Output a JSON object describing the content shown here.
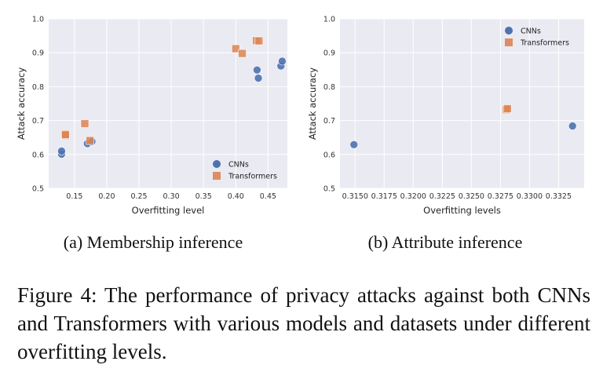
{
  "colors": {
    "cnn": "#4c72b0",
    "transformer": "#dd8452",
    "background": "#eaeaf2"
  },
  "chart_data": [
    {
      "type": "scatter",
      "subcaption": "(a) Membership inference",
      "xlabel": "Overfitting level",
      "ylabel": "Attack accuracy",
      "xlim": [
        0.11,
        0.48
      ],
      "ylim": [
        0.5,
        1.0
      ],
      "xticks": [
        "0.15",
        "0.20",
        "0.25",
        "0.30",
        "0.35",
        "0.40",
        "0.45"
      ],
      "yticks": [
        "0.5",
        "0.6",
        "0.7",
        "0.8",
        "0.9",
        "1.0"
      ],
      "grid": true,
      "legend_position": "lower-right",
      "series": [
        {
          "name": "CNNs",
          "marker": "circle",
          "color": "#4c72b0",
          "x": [
            0.13,
            0.13,
            0.17,
            0.177,
            0.433,
            0.435,
            0.47,
            0.472
          ],
          "y": [
            0.601,
            0.61,
            0.632,
            0.638,
            0.849,
            0.825,
            0.861,
            0.875
          ]
        },
        {
          "name": "Transformers",
          "marker": "square",
          "color": "#dd8452",
          "x": [
            0.136,
            0.136,
            0.166,
            0.174,
            0.4,
            0.41,
            0.432,
            0.436
          ],
          "y": [
            0.656,
            0.659,
            0.691,
            0.641,
            0.912,
            0.898,
            0.936,
            0.935
          ]
        }
      ]
    },
    {
      "type": "scatter",
      "subcaption": "(b) Attribute inference",
      "xlabel": "Overfitting levels",
      "ylabel": "Attack accuracy",
      "xlim": [
        0.3137,
        0.3347
      ],
      "ylim": [
        0.5,
        1.0
      ],
      "xticks": [
        "0.3150",
        "0.3175",
        "0.3200",
        "0.3225",
        "0.3250",
        "0.3275",
        "0.3300",
        "0.3325"
      ],
      "yticks": [
        "0.5",
        "0.6",
        "0.7",
        "0.8",
        "0.9",
        "1.0"
      ],
      "grid": true,
      "legend_position": "upper-right",
      "series": [
        {
          "name": "CNNs",
          "marker": "circle",
          "color": "#4c72b0",
          "x": [
            0.3149,
            0.3337
          ],
          "y": [
            0.629,
            0.684
          ]
        },
        {
          "name": "Transformers",
          "marker": "square",
          "color": "#dd8452",
          "x": [
            0.328,
            0.3281
          ],
          "y": [
            0.732,
            0.735
          ]
        }
      ]
    }
  ],
  "caption": "Figure 4: The performance of privacy attacks against both CNNs and Transformers with various models and datasets under different overfitting levels."
}
